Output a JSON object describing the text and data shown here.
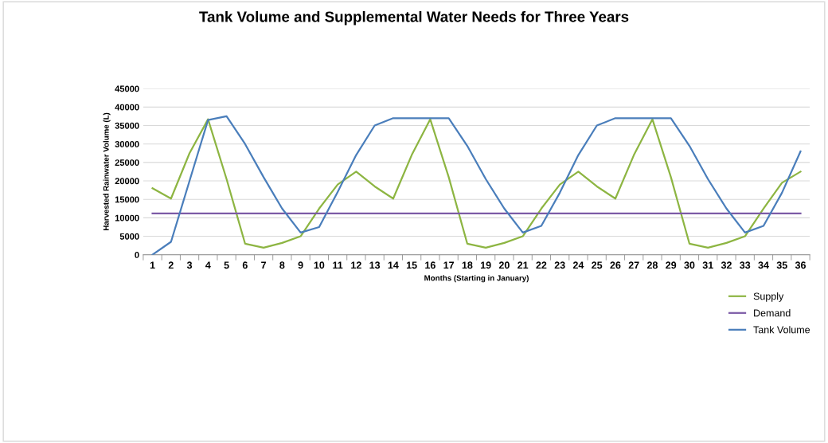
{
  "chart_data": {
    "type": "line",
    "title": "Tank Volume and Supplemental Water Needs for Three Years",
    "xlabel": "Months (Starting in January)",
    "ylabel": "Harvested Rainwater Volume (L)",
    "categories": [
      "1",
      "2",
      "3",
      "4",
      "5",
      "6",
      "7",
      "8",
      "9",
      "10",
      "11",
      "12",
      "13",
      "14",
      "15",
      "16",
      "17",
      "18",
      "19",
      "20",
      "21",
      "22",
      "23",
      "24",
      "25",
      "26",
      "27",
      "28",
      "29",
      "30",
      "31",
      "32",
      "33",
      "34",
      "35",
      "36"
    ],
    "series": [
      {
        "name": "Supply",
        "color": "#8db542",
        "values": [
          18000,
          15200,
          27500,
          36700,
          20500,
          3000,
          1900,
          3200,
          5000,
          12500,
          19000,
          22500,
          18500,
          15200,
          27000,
          36700,
          21000,
          3000,
          1900,
          3200,
          5000,
          12500,
          19000,
          22500,
          18500,
          15200,
          27000,
          36700,
          21000,
          3000,
          1900,
          3200,
          5000,
          12500,
          19500,
          22500
        ]
      },
      {
        "name": "Demand",
        "color": "#7c5ba6",
        "values": [
          11200,
          11200,
          11200,
          11200,
          11200,
          11200,
          11200,
          11200,
          11200,
          11200,
          11200,
          11200,
          11200,
          11200,
          11200,
          11200,
          11200,
          11200,
          11200,
          11200,
          11200,
          11200,
          11200,
          11200,
          11200,
          11200,
          11200,
          11200,
          11200,
          11200,
          11200,
          11200,
          11200,
          11200,
          11200,
          11200
        ]
      },
      {
        "name": "Tank Volume",
        "color": "#4a7ebb",
        "values": [
          0,
          3500,
          20000,
          36500,
          37500,
          30000,
          21000,
          12500,
          6000,
          7500,
          17000,
          27000,
          35000,
          37000,
          37000,
          37000,
          37000,
          29500,
          20500,
          12500,
          6000,
          7800,
          16800,
          27000,
          35000,
          37000,
          37000,
          37000,
          37000,
          29500,
          20500,
          12500,
          6000,
          7800,
          16800,
          28000
        ]
      }
    ],
    "ylim": [
      0,
      45000
    ],
    "yticks": [
      0,
      5000,
      10000,
      15000,
      20000,
      25000,
      30000,
      35000,
      40000,
      45000
    ],
    "grid": "y",
    "legend": "bottom right",
    "marker": "none",
    "line_style": "solid"
  }
}
